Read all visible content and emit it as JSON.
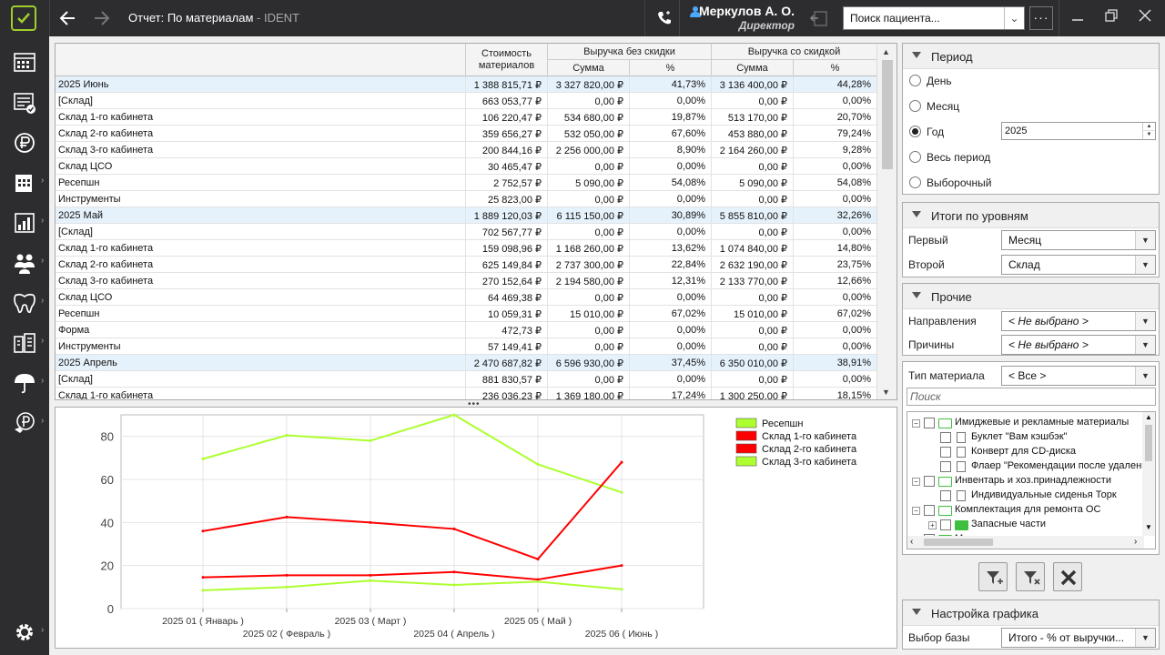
{
  "window": {
    "title": "Отчет: По материалам",
    "app": " - IDENT",
    "user_name": "Меркулов А. О.",
    "user_role": "Директор",
    "search_placeholder": "Поиск пациента..."
  },
  "sidebar": {
    "items": [
      "calendar-icon",
      "schedule-icon",
      "money-icon",
      "reports-icon",
      "stats-icon",
      "patients-icon",
      "tooth-icon",
      "devices-icon",
      "umbrella-icon",
      "loyalty-icon",
      "settings-icon"
    ]
  },
  "grid": {
    "headers": {
      "cost": "Стоимость материалов",
      "rev_no_disc": "Выручка без скидки",
      "rev_disc": "Выручка со скидкой",
      "sum": "Сумма",
      "pct": "%"
    },
    "rows": [
      {
        "name": "2025 Июнь",
        "cost": "1 388 815,71 ₽",
        "s1": "3 327 820,00 ₽",
        "p1": "41,73%",
        "s2": "3 136 400,00 ₽",
        "p2": "44,28%",
        "group": true
      },
      {
        "name": "[Склад]",
        "cost": "663 053,77 ₽",
        "s1": "0,00 ₽",
        "p1": "0,00%",
        "s2": "0,00 ₽",
        "p2": "0,00%"
      },
      {
        "name": "Склад 1-го кабинета",
        "cost": "106 220,47 ₽",
        "s1": "534 680,00 ₽",
        "p1": "19,87%",
        "s2": "513 170,00 ₽",
        "p2": "20,70%"
      },
      {
        "name": "Склад 2-го кабинета",
        "cost": "359 656,27 ₽",
        "s1": "532 050,00 ₽",
        "p1": "67,60%",
        "s2": "453 880,00 ₽",
        "p2": "79,24%"
      },
      {
        "name": "Склад 3-го кабинета",
        "cost": "200 844,16 ₽",
        "s1": "2 256 000,00 ₽",
        "p1": "8,90%",
        "s2": "2 164 260,00 ₽",
        "p2": "9,28%"
      },
      {
        "name": "Склад ЦСО",
        "cost": "30 465,47 ₽",
        "s1": "0,00 ₽",
        "p1": "0,00%",
        "s2": "0,00 ₽",
        "p2": "0,00%"
      },
      {
        "name": "Ресепшн",
        "cost": "2 752,57 ₽",
        "s1": "5 090,00 ₽",
        "p1": "54,08%",
        "s2": "5 090,00 ₽",
        "p2": "54,08%"
      },
      {
        "name": "Инструменты",
        "cost": "25 823,00 ₽",
        "s1": "0,00 ₽",
        "p1": "0,00%",
        "s2": "0,00 ₽",
        "p2": "0,00%"
      },
      {
        "name": "2025 Май",
        "cost": "1 889 120,03 ₽",
        "s1": "6 115 150,00 ₽",
        "p1": "30,89%",
        "s2": "5 855 810,00 ₽",
        "p2": "32,26%",
        "group": true
      },
      {
        "name": "[Склад]",
        "cost": "702 567,77 ₽",
        "s1": "0,00 ₽",
        "p1": "0,00%",
        "s2": "0,00 ₽",
        "p2": "0,00%"
      },
      {
        "name": "Склад 1-го кабинета",
        "cost": "159 098,96 ₽",
        "s1": "1 168 260,00 ₽",
        "p1": "13,62%",
        "s2": "1 074 840,00 ₽",
        "p2": "14,80%"
      },
      {
        "name": "Склад 2-го кабинета",
        "cost": "625 149,84 ₽",
        "s1": "2 737 300,00 ₽",
        "p1": "22,84%",
        "s2": "2 632 190,00 ₽",
        "p2": "23,75%"
      },
      {
        "name": "Склад 3-го кабинета",
        "cost": "270 152,64 ₽",
        "s1": "2 194 580,00 ₽",
        "p1": "12,31%",
        "s2": "2 133 770,00 ₽",
        "p2": "12,66%"
      },
      {
        "name": "Склад ЦСО",
        "cost": "64 469,38 ₽",
        "s1": "0,00 ₽",
        "p1": "0,00%",
        "s2": "0,00 ₽",
        "p2": "0,00%"
      },
      {
        "name": "Ресепшн",
        "cost": "10 059,31 ₽",
        "s1": "15 010,00 ₽",
        "p1": "67,02%",
        "s2": "15 010,00 ₽",
        "p2": "67,02%"
      },
      {
        "name": "Форма",
        "cost": "472,73 ₽",
        "s1": "0,00 ₽",
        "p1": "0,00%",
        "s2": "0,00 ₽",
        "p2": "0,00%"
      },
      {
        "name": "Инструменты",
        "cost": "57 149,41 ₽",
        "s1": "0,00 ₽",
        "p1": "0,00%",
        "s2": "0,00 ₽",
        "p2": "0,00%"
      },
      {
        "name": "2025 Апрель",
        "cost": "2 470 687,82 ₽",
        "s1": "6 596 930,00 ₽",
        "p1": "37,45%",
        "s2": "6 350 010,00 ₽",
        "p2": "38,91%",
        "group": true
      },
      {
        "name": "[Склад]",
        "cost": "881 830,57 ₽",
        "s1": "0,00 ₽",
        "p1": "0,00%",
        "s2": "0,00 ₽",
        "p2": "0,00%"
      },
      {
        "name": "Склад 1-го кабинета",
        "cost": "236 036,23 ₽",
        "s1": "1 369 180,00 ₽",
        "p1": "17,24%",
        "s2": "1 300 250,00 ₽",
        "p2": "18,15%"
      }
    ]
  },
  "chart_data": {
    "type": "line",
    "categories": [
      "2025 01 ( Январь )",
      "2025 02 ( Февраль )",
      "2025 03 ( Март )",
      "2025 04 ( Апрель )",
      "2025 05 ( Май )",
      "2025 06 ( Июнь )"
    ],
    "ylim": [
      0,
      90
    ],
    "yticks": [
      "0",
      "20",
      "40",
      "60",
      "80"
    ],
    "grid": true,
    "legend_position": "top-right",
    "series": [
      {
        "name": "Ресепшн",
        "color": "#adff2f",
        "values": [
          69.5,
          80.5,
          78,
          90,
          67,
          54
        ]
      },
      {
        "name": "Склад 1-го кабинета",
        "color": "#ff0000",
        "values": [
          14.5,
          15.5,
          15.5,
          17,
          13.5,
          20
        ]
      },
      {
        "name": "Склад 2-го кабинета",
        "color": "#ff0000",
        "values": [
          36,
          42.5,
          40,
          37,
          23,
          68
        ]
      },
      {
        "name": "Склад 3-го кабинета",
        "color": "#adff2f",
        "values": [
          8.5,
          10,
          13,
          11,
          12.5,
          9
        ]
      }
    ]
  },
  "filters": {
    "period": {
      "title": "Период",
      "options": [
        "День",
        "Месяц",
        "Год",
        "Весь период",
        "Выборочный"
      ],
      "selected": "Год",
      "year": "2025"
    },
    "levels": {
      "title": "Итоги по уровням",
      "first_label": "Первый",
      "first_value": "Месяц",
      "second_label": "Второй",
      "second_value": "Склад"
    },
    "other": {
      "title": "Прочие",
      "directions_label": "Направления",
      "directions_value": "< Не выбрано >",
      "reasons_label": "Причины",
      "reasons_value": "< Не выбрано >"
    },
    "material": {
      "type_label": "Тип материала",
      "type_value": "< Все >",
      "search_placeholder": "Поиск",
      "tree": [
        {
          "text": "Имиджевые и рекламные материалы",
          "level": 0,
          "folder": true,
          "expanded": true
        },
        {
          "text": "Буклет \"Вам кэшбэк\"",
          "level": 1
        },
        {
          "text": "Конверт для CD-диска",
          "level": 1
        },
        {
          "text": "Флаер \"Рекомендации после удаления\"",
          "level": 1
        },
        {
          "text": "Инвентарь и хоз.принадлежности",
          "level": 0,
          "folder": true,
          "expanded": true
        },
        {
          "text": "Индивидуальные сиденья Торк",
          "level": 1
        },
        {
          "text": "Комплектация для ремонта ОС",
          "level": 0,
          "folder": true,
          "expanded": true
        },
        {
          "text": "Запасные части",
          "level": 1,
          "folder": true,
          "expanded": false
        },
        {
          "text": "Медицинские материалы",
          "level": 0,
          "folder": true,
          "expanded": false
        }
      ]
    },
    "chart_settings": {
      "title": "Настройка графика",
      "base_label": "Выбор базы",
      "base_value": "Итого - % от выручки..."
    }
  }
}
